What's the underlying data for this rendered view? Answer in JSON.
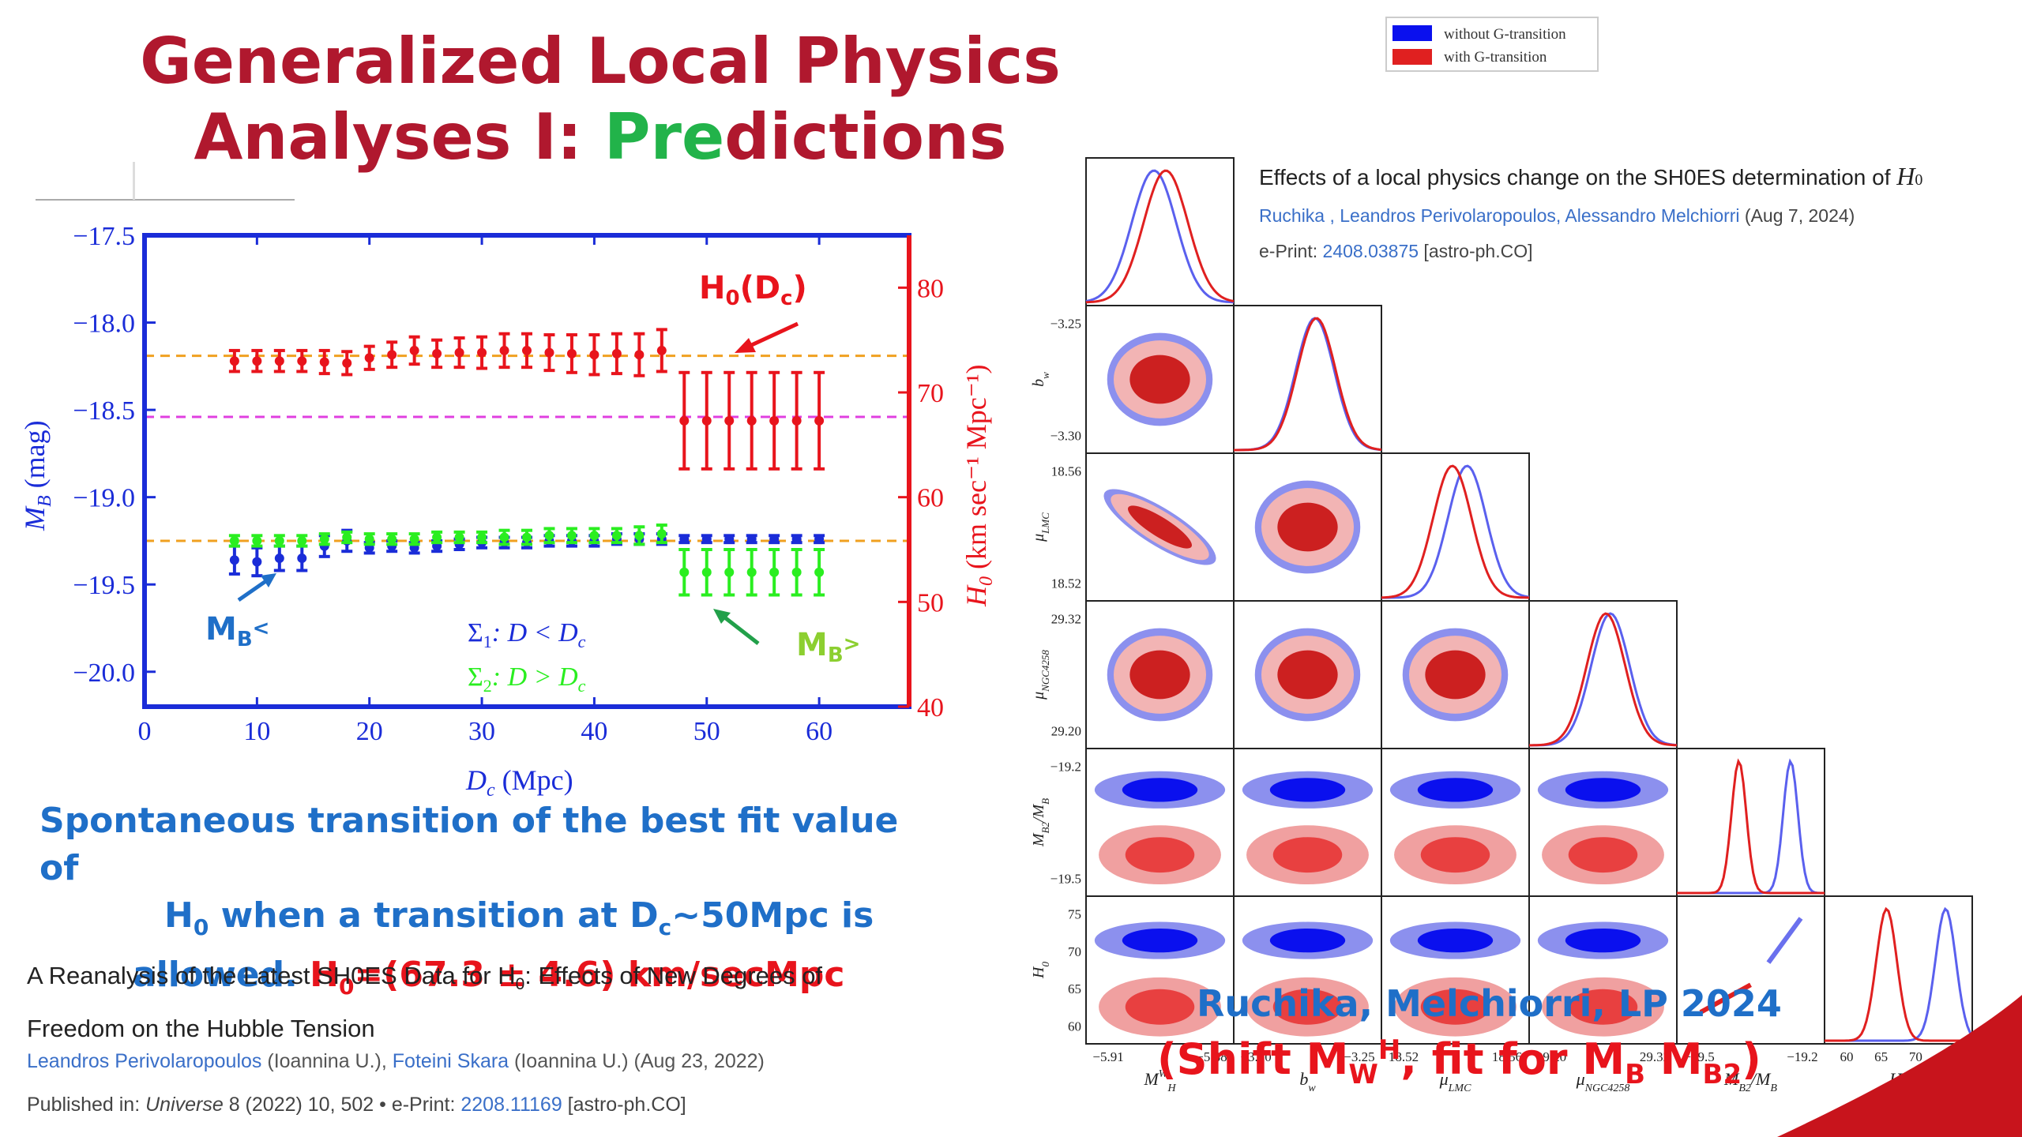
{
  "slide": {
    "title_line1": "Generalized Local Physics",
    "title_line2_a": "Analyses  I: ",
    "title_line2_b": "Pre",
    "title_line2_c": "dictions",
    "caption_line1": "Spontaneous transition of the best fit value of",
    "caption_line2_a": "H",
    "caption_line2_b": "0",
    "caption_line2_c": "  when a transition at D",
    "caption_line2_d": "c",
    "caption_line2_e": "~50Mpc is",
    "caption_line3_a": "allowed.  ",
    "caption_line3_b": "H",
    "caption_line3_c": "0",
    "caption_line3_d": "=(67.3 ± 4.6) km/secMpc",
    "credit": "Ruchika, Melchiorri, LP 2024",
    "shift_a": "(Shift M",
    "shift_b": "W",
    "shift_c": "H",
    "shift_d": ", fit for M",
    "shift_e": "B",
    "shift_f": " M",
    "shift_g": "B2",
    "shift_h": ")"
  },
  "reference1": {
    "title_a": "A Reanalysis of the Latest SH0ES Data for H",
    "title_b": "0",
    "title_c": ": Effects of New Degrees of",
    "title_d": "Freedom on the Hubble Tension",
    "authors_a": "Leandros Perivolaropoulos",
    "authors_b": " (Ioannina U.), ",
    "authors_c": "Foteini Skara",
    "authors_d": " (Ioannina U.) (Aug 23, 2022)",
    "pub_a": "Published in: ",
    "pub_b": "Universe",
    "pub_c": " 8 (2022) 10, 502 • e-Print: ",
    "pub_d": "2208.11169",
    "pub_e": " [astro-ph.CO]"
  },
  "reference2": {
    "title_a": "Effects of a local physics change on the SH0ES determination of ",
    "title_b": "H",
    "title_c": "0",
    "authors_a": "Ruchika , Leandros Perivolaropoulos, Alessandro Melchiorri",
    "authors_b": " (Aug 7, 2024)",
    "eprint_a": "e-Print: ",
    "eprint_b": "2408.03875",
    "eprint_c": " [astro-ph.CO]"
  },
  "chart_data": [
    {
      "type": "scatter",
      "xlabel": "D",
      "xlabel_sub": "c",
      "xlabel_unit": " (Mpc)",
      "ylabel": "M",
      "ylabel_sub": "B",
      "ylabel_unit": " (mag)",
      "y2label": "H",
      "y2label_sub": "0",
      "y2label_unit": " (km sec⁻¹ Mpc⁻¹)",
      "xlim": [
        0,
        68
      ],
      "ylim": [
        -20.2,
        -17.5
      ],
      "y2lim": [
        40,
        85
      ],
      "xticks": [
        "0",
        "10",
        "20",
        "30",
        "40",
        "50",
        "60"
      ],
      "xtick_values": [
        0,
        10,
        20,
        30,
        40,
        50,
        60
      ],
      "yticks": [
        "−17.5",
        "−18.0",
        "−18.5",
        "−19.0",
        "−19.5",
        "−20.0"
      ],
      "ytick_values": [
        -17.5,
        -18.0,
        -18.5,
        -19.0,
        -19.5,
        -20.0
      ],
      "y2ticks": [
        "40",
        "50",
        "60",
        "70",
        "80"
      ],
      "y2tick_values": [
        40,
        50,
        60,
        70,
        80
      ],
      "reference_lines": [
        {
          "axis": "y",
          "value": -18.19,
          "color": "#f0a020"
        },
        {
          "axis": "y",
          "value": -18.54,
          "color": "#e040e0"
        },
        {
          "axis": "y",
          "value": -19.25,
          "color": "#f0a020"
        }
      ],
      "series": [
        {
          "name": "H0(Dc)",
          "label_a": "H",
          "label_b": "0",
          "label_c": "(D",
          "label_d": "c",
          "label_e": ")",
          "axis": "right",
          "color": "#e8141c",
          "x": [
            8,
            10,
            12,
            14,
            16,
            18,
            20,
            22,
            24,
            26,
            28,
            30,
            32,
            34,
            36,
            38,
            40,
            42,
            44,
            46,
            48,
            50,
            52,
            54,
            56,
            58,
            60
          ],
          "y": [
            73.0,
            73.0,
            73.0,
            73.0,
            72.9,
            72.8,
            73.3,
            73.6,
            74.0,
            73.7,
            73.8,
            73.8,
            74.0,
            74.0,
            73.8,
            73.7,
            73.6,
            73.7,
            73.6,
            74.0,
            67.3,
            67.3,
            67.3,
            67.3,
            67.3,
            67.3,
            67.3
          ],
          "err": [
            1.0,
            1.0,
            1.0,
            1.0,
            1.1,
            1.1,
            1.1,
            1.2,
            1.3,
            1.3,
            1.4,
            1.5,
            1.6,
            1.6,
            1.7,
            1.8,
            1.9,
            1.9,
            2.0,
            2.0,
            4.6,
            4.6,
            4.6,
            4.6,
            4.6,
            4.6,
            4.6
          ]
        },
        {
          "name": "MB<",
          "label_a": "M",
          "label_b": "B",
          "label_c": "<",
          "axis": "left",
          "color": "#1a2cd8",
          "x": [
            8,
            10,
            12,
            14,
            16,
            18,
            20,
            22,
            24,
            26,
            28,
            30,
            32,
            34,
            36,
            38,
            40,
            42,
            44,
            46,
            48,
            50,
            52,
            54,
            56,
            58,
            60
          ],
          "y": [
            -19.36,
            -19.37,
            -19.35,
            -19.35,
            -19.28,
            -19.25,
            -19.29,
            -19.28,
            -19.29,
            -19.28,
            -19.27,
            -19.26,
            -19.26,
            -19.26,
            -19.25,
            -19.25,
            -19.25,
            -19.24,
            -19.24,
            -19.24,
            -19.24,
            -19.24,
            -19.24,
            -19.24,
            -19.24,
            -19.24,
            -19.24
          ],
          "err": [
            0.08,
            0.08,
            0.07,
            0.07,
            0.06,
            0.06,
            0.03,
            0.03,
            0.03,
            0.03,
            0.03,
            0.03,
            0.03,
            0.03,
            0.03,
            0.03,
            0.03,
            0.03,
            0.03,
            0.03,
            0.02,
            0.02,
            0.02,
            0.02,
            0.02,
            0.02,
            0.02
          ]
        },
        {
          "name": "MB>",
          "label_a": "M",
          "label_b": "B",
          "label_c": ">",
          "axis": "left",
          "color": "#2aee20",
          "x": [
            8,
            10,
            12,
            14,
            16,
            18,
            20,
            22,
            24,
            26,
            28,
            30,
            32,
            34,
            36,
            38,
            40,
            42,
            44,
            46,
            48,
            50,
            52,
            54,
            56,
            58,
            60
          ],
          "y": [
            -19.25,
            -19.25,
            -19.25,
            -19.25,
            -19.24,
            -19.23,
            -19.24,
            -19.24,
            -19.24,
            -19.23,
            -19.23,
            -19.23,
            -19.23,
            -19.23,
            -19.22,
            -19.22,
            -19.22,
            -19.22,
            -19.22,
            -19.21,
            -19.43,
            -19.43,
            -19.43,
            -19.43,
            -19.43,
            -19.43,
            -19.43
          ],
          "err": [
            0.03,
            0.03,
            0.03,
            0.03,
            0.03,
            0.03,
            0.03,
            0.03,
            0.03,
            0.03,
            0.03,
            0.03,
            0.04,
            0.04,
            0.04,
            0.04,
            0.04,
            0.04,
            0.05,
            0.05,
            0.13,
            0.13,
            0.13,
            0.13,
            0.13,
            0.13,
            0.13
          ]
        }
      ],
      "annotations": {
        "sigma1_a": "Σ",
        "sigma1_b": "1",
        "sigma1_c": ": D < D",
        "sigma1_d": "c",
        "sigma2_a": "Σ",
        "sigma2_b": "2",
        "sigma2_c": ": D > D",
        "sigma2_d": "c"
      }
    },
    {
      "type": "scatter",
      "subtype": "corner-plot",
      "legend": [
        "without G-transition",
        "with G-transition"
      ],
      "legend_placement": "top",
      "series_colors": [
        "#0a10ee",
        "#e02020"
      ],
      "parameters": [
        "M_H^W",
        "b_w",
        "μ_LMC",
        "μ_NGC4258",
        "M_B2/M_B",
        "H_0"
      ],
      "param_labels": [
        "M",
        "b",
        "μ",
        "μ",
        "M",
        "H"
      ],
      "param_label_subs": [
        "H",
        "w",
        "LMC",
        "NGC4258",
        "B2",
        "0"
      ],
      "param_label_sups": [
        "W",
        "",
        "",
        "",
        "",
        ""
      ],
      "param_label_tail": [
        "",
        "",
        "",
        "",
        "/M",
        ""
      ],
      "param_label_tail_sub": [
        "",
        "",
        "",
        "",
        "B",
        ""
      ],
      "x_ticks": [
        [
          "−5.91",
          "−5.88"
        ],
        [
          "−3.30",
          "−3.25"
        ],
        [
          "18.52",
          "18.56"
        ],
        [
          "29.20",
          "29.32"
        ],
        [
          "−19.5",
          "−19.2"
        ],
        [
          "60",
          "65",
          "70",
          "75"
        ]
      ],
      "y_ticks": [
        [],
        [
          "−3.25",
          "−3.30"
        ],
        [
          "18.56",
          "18.52"
        ],
        [
          "29.32",
          "29.20"
        ],
        [
          "−19.2",
          "−19.5"
        ],
        [
          "75",
          "70",
          "65",
          "60"
        ]
      ],
      "means_without": [
        -5.885,
        -3.275,
        18.545,
        29.28,
        -19.22,
        73.0
      ],
      "means_with": [
        -5.885,
        -3.275,
        18.542,
        29.27,
        -19.48,
        66.0
      ],
      "diag_peaks": [
        {
          "x_without": 0.46,
          "x_with": 0.54,
          "w": 0.15
        },
        {
          "x_without": 0.55,
          "x_with": 0.56,
          "w": 0.13
        },
        {
          "x_without": 0.58,
          "x_with": 0.48,
          "w": 0.13
        },
        {
          "x_without": 0.55,
          "x_with": 0.52,
          "w": 0.13
        },
        {
          "x_without": 0.77,
          "x_with": 0.42,
          "w": 0.05
        },
        {
          "x_without": 0.82,
          "x_with": 0.42,
          "w": 0.07
        }
      ]
    }
  ]
}
